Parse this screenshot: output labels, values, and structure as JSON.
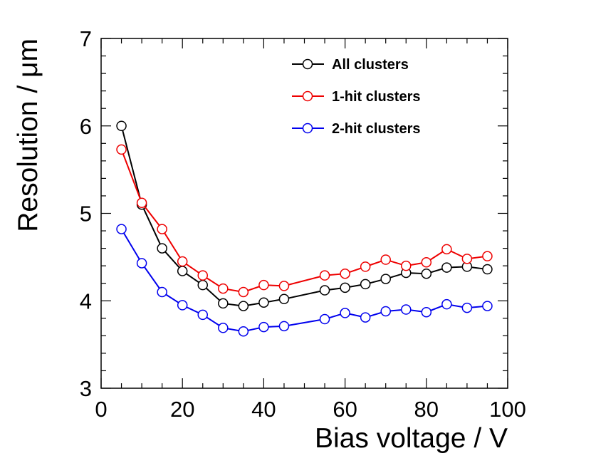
{
  "chart_data": {
    "type": "line",
    "title": "",
    "xlabel": "Bias voltage / V",
    "ylabel": "Resolution / μm",
    "xlim": [
      0,
      100
    ],
    "ylim": [
      3,
      7
    ],
    "x_ticks": [
      "0",
      "20",
      "40",
      "60",
      "80",
      "100"
    ],
    "y_ticks": [
      "3",
      "4",
      "5",
      "6",
      "7"
    ],
    "grid": false,
    "legend_position": "top-right",
    "series": [
      {
        "name": "All clusters",
        "color": "#000000",
        "x": [
          5,
          10,
          15,
          20,
          25,
          30,
          35,
          40,
          45,
          55,
          60,
          65,
          70,
          75,
          80,
          85,
          90,
          95
        ],
        "y": [
          6.0,
          5.1,
          4.6,
          4.34,
          4.18,
          3.97,
          3.94,
          3.98,
          4.02,
          4.12,
          4.15,
          4.19,
          4.25,
          4.32,
          4.31,
          4.38,
          4.39,
          4.36
        ]
      },
      {
        "name": "1-hit clusters",
        "color": "#ee0000",
        "x": [
          5,
          10,
          15,
          20,
          25,
          30,
          35,
          40,
          45,
          55,
          60,
          65,
          70,
          75,
          80,
          85,
          90,
          95
        ],
        "y": [
          5.73,
          5.12,
          4.82,
          4.45,
          4.29,
          4.14,
          4.1,
          4.18,
          4.17,
          4.29,
          4.31,
          4.39,
          4.47,
          4.4,
          4.44,
          4.59,
          4.48,
          4.51
        ]
      },
      {
        "name": "2-hit clusters",
        "color": "#0000ee",
        "x": [
          5,
          10,
          15,
          20,
          25,
          30,
          35,
          40,
          45,
          55,
          60,
          65,
          70,
          75,
          80,
          85,
          90,
          95
        ],
        "y": [
          4.82,
          4.43,
          4.1,
          3.95,
          3.84,
          3.69,
          3.65,
          3.7,
          3.71,
          3.79,
          3.86,
          3.81,
          3.88,
          3.9,
          3.87,
          3.96,
          3.92,
          3.94
        ]
      }
    ]
  }
}
